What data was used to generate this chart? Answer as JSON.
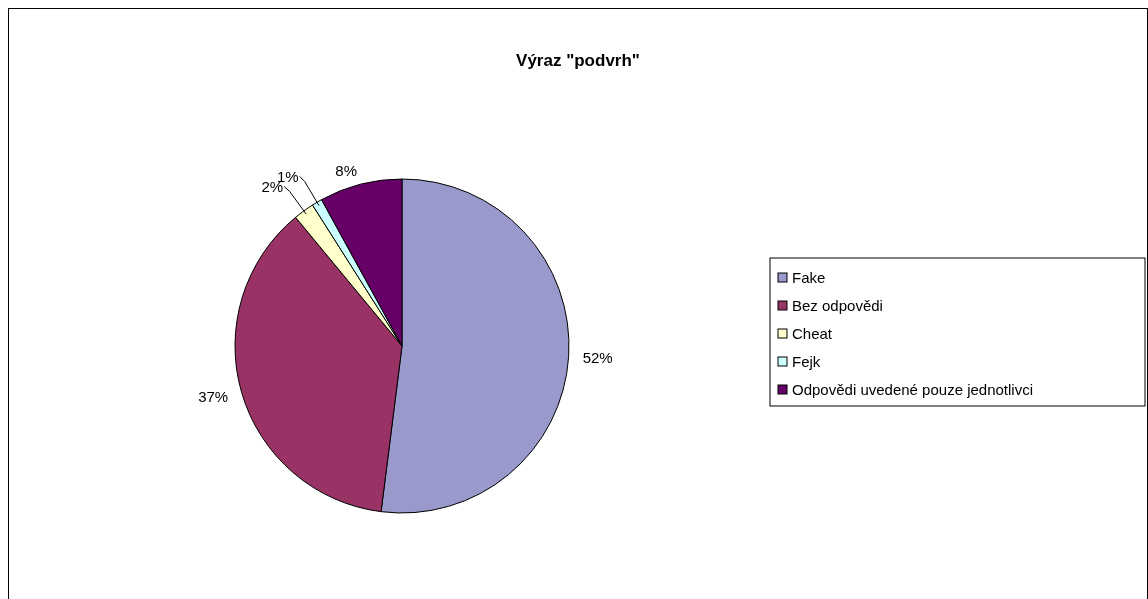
{
  "chart_data": {
    "type": "pie",
    "title": "Výraz \"podvrh\"",
    "categories": [
      "Fake",
      "Bez odpovědi",
      "Cheat",
      "Fejk",
      "Odpovědi uvedené pouze jednotlivci"
    ],
    "values": [
      52,
      37,
      2,
      1,
      8
    ],
    "colors": [
      "#9999cc",
      "#993366",
      "#ffffcc",
      "#ccffff",
      "#660066"
    ],
    "value_labels": [
      "52%",
      "37%",
      "2%",
      "1%",
      "8%"
    ],
    "legend": "right"
  }
}
